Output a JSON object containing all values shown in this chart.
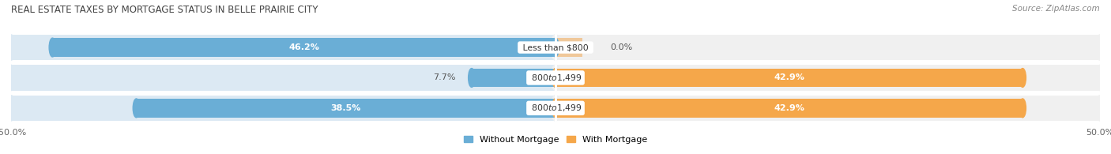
{
  "title": "REAL ESTATE TAXES BY MORTGAGE STATUS IN BELLE PRAIRIE CITY",
  "source": "Source: ZipAtlas.com",
  "categories": [
    "Less than $800",
    "$800 to $1,499",
    "$800 to $1,499"
  ],
  "without_mortgage": [
    46.2,
    7.7,
    38.5
  ],
  "with_mortgage": [
    0.0,
    42.9,
    42.9
  ],
  "color_without": "#6aaed6",
  "color_with": "#f5a74a",
  "color_without_light": "#aacde8",
  "bar_bg_color_left": "#dce9f3",
  "bar_bg_color_right": "#f0f0f0",
  "xlim_left": -50,
  "xlim_right": 50,
  "legend_without": "Without Mortgage",
  "legend_with": "With Mortgage",
  "figsize": [
    14.06,
    1.95
  ],
  "dpi": 100
}
